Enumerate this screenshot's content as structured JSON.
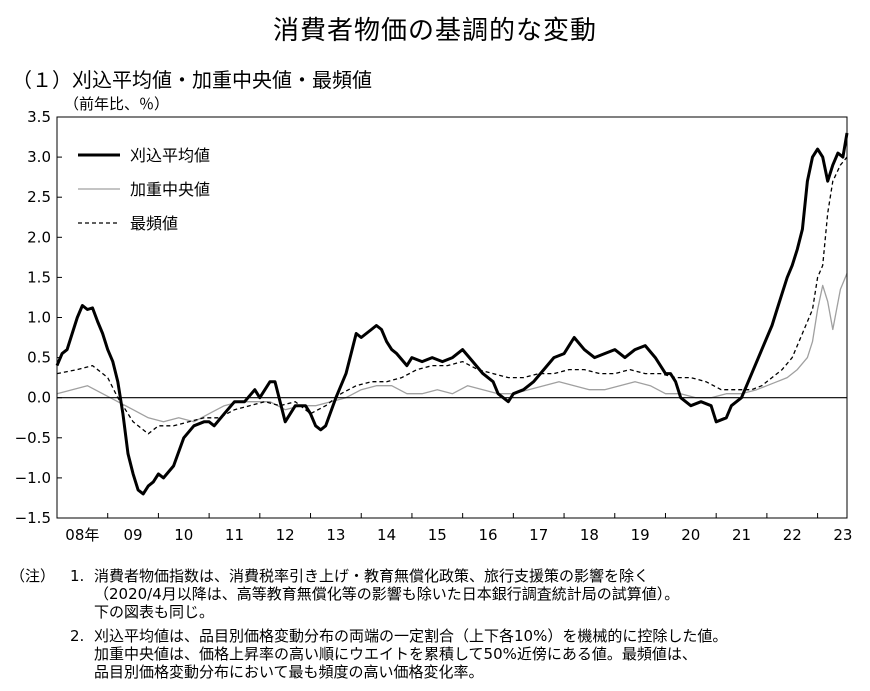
{
  "title": "消費者物価の基調的な変動",
  "section": "（１）刈込平均値・加重中央値・最頻値",
  "unit": "（前年比、％）",
  "notes": {
    "head": "（注）",
    "items": [
      {
        "num": "1.",
        "lines": [
          "消費者物価指数は、消費税率引き上げ・教育無償化政策、旅行支援策の影響を除く",
          "（2020/4月以降は、高等教育無償化等の影響も除いた日本銀行調査統計局の試算値）。",
          "下の図表も同じ。"
        ]
      },
      {
        "num": "2.",
        "lines": [
          "刈込平均値は、品目別価格変動分布の両端の一定割合（上下各10%）を機械的に控除した値。",
          "加重中央値は、価格上昇率の高い順にウエイトを累積して50%近傍にある値。最頻値は、",
          "品目別価格変動分布において最も頻度の高い価格変化率。"
        ]
      }
    ]
  },
  "chart_data": {
    "type": "line",
    "title": "",
    "xlabel": "",
    "ylabel": "（前年比、％）",
    "ylim": [
      -1.5,
      3.5
    ],
    "yticks": [
      "3.5",
      "3.0",
      "2.5",
      "2.0",
      "1.5",
      "1.0",
      "0.5",
      "0.0",
      "-0.5",
      "-1.0",
      "-1.5"
    ],
    "xlim": [
      2008.0,
      2023.58
    ],
    "xticks": [
      {
        "label": "08年",
        "x": 2008.0
      },
      {
        "label": "09",
        "x": 2009.0
      },
      {
        "label": "10",
        "x": 2010.0
      },
      {
        "label": "11",
        "x": 2011.0
      },
      {
        "label": "12",
        "x": 2012.0
      },
      {
        "label": "13",
        "x": 2013.0
      },
      {
        "label": "14",
        "x": 2014.0
      },
      {
        "label": "15",
        "x": 2015.0
      },
      {
        "label": "16",
        "x": 2016.0
      },
      {
        "label": "17",
        "x": 2017.0
      },
      {
        "label": "18",
        "x": 2018.0
      },
      {
        "label": "19",
        "x": 2019.0
      },
      {
        "label": "20",
        "x": 2020.0
      },
      {
        "label": "21",
        "x": 2021.0
      },
      {
        "label": "22",
        "x": 2022.0
      },
      {
        "label": "23",
        "x": 2023.0
      }
    ],
    "legend": "top-left",
    "series": [
      {
        "name": "刈込平均値",
        "color": "#000000",
        "style": "solid-thick",
        "x": [
          2008.0,
          2008.1,
          2008.2,
          2008.3,
          2008.4,
          2008.5,
          2008.6,
          2008.7,
          2008.8,
          2008.9,
          2009.0,
          2009.1,
          2009.2,
          2009.3,
          2009.4,
          2009.5,
          2009.6,
          2009.7,
          2009.8,
          2009.9,
          2010.0,
          2010.1,
          2010.3,
          2010.5,
          2010.7,
          2010.9,
          2011.0,
          2011.1,
          2011.3,
          2011.5,
          2011.7,
          2011.9,
          2012.0,
          2012.1,
          2012.2,
          2012.3,
          2012.5,
          2012.7,
          2012.9,
          2013.0,
          2013.1,
          2013.2,
          2013.3,
          2013.5,
          2013.7,
          2013.8,
          2013.9,
          2014.0,
          2014.1,
          2014.2,
          2014.3,
          2014.4,
          2014.5,
          2014.6,
          2014.7,
          2014.9,
          2015.0,
          2015.2,
          2015.4,
          2015.6,
          2015.8,
          2016.0,
          2016.2,
          2016.4,
          2016.6,
          2016.7,
          2016.8,
          2016.9,
          2017.0,
          2017.2,
          2017.4,
          2017.6,
          2017.8,
          2018.0,
          2018.1,
          2018.2,
          2018.4,
          2018.6,
          2018.8,
          2019.0,
          2019.2,
          2019.4,
          2019.6,
          2019.8,
          2020.0,
          2020.1,
          2020.2,
          2020.3,
          2020.5,
          2020.7,
          2020.9,
          2021.0,
          2021.2,
          2021.3,
          2021.5,
          2021.7,
          2021.9,
          2022.0,
          2022.1,
          2022.2,
          2022.3,
          2022.4,
          2022.5,
          2022.6,
          2022.7,
          2022.8,
          2022.9,
          2023.0,
          2023.1,
          2023.2,
          2023.3,
          2023.4,
          2023.5,
          2023.58
        ],
        "values": [
          0.4,
          0.55,
          0.6,
          0.8,
          1.0,
          1.15,
          1.1,
          1.12,
          0.95,
          0.8,
          0.6,
          0.45,
          0.2,
          -0.2,
          -0.7,
          -0.95,
          -1.15,
          -1.2,
          -1.1,
          -1.05,
          -0.95,
          -1.0,
          -0.85,
          -0.5,
          -0.35,
          -0.3,
          -0.3,
          -0.35,
          -0.2,
          -0.05,
          -0.05,
          0.1,
          0.0,
          0.1,
          0.2,
          0.2,
          -0.3,
          -0.1,
          -0.1,
          -0.2,
          -0.35,
          -0.4,
          -0.35,
          0.0,
          0.3,
          0.55,
          0.8,
          0.75,
          0.8,
          0.85,
          0.9,
          0.85,
          0.7,
          0.6,
          0.55,
          0.4,
          0.5,
          0.45,
          0.5,
          0.45,
          0.5,
          0.6,
          0.45,
          0.3,
          0.2,
          0.05,
          0.0,
          -0.05,
          0.05,
          0.1,
          0.2,
          0.35,
          0.5,
          0.55,
          0.65,
          0.75,
          0.6,
          0.5,
          0.55,
          0.6,
          0.5,
          0.6,
          0.65,
          0.5,
          0.3,
          0.3,
          0.2,
          0.0,
          -0.1,
          -0.05,
          -0.1,
          -0.3,
          -0.25,
          -0.1,
          0.0,
          0.3,
          0.6,
          0.75,
          0.9,
          1.1,
          1.3,
          1.5,
          1.65,
          1.85,
          2.1,
          2.7,
          3.0,
          3.1,
          3.0,
          2.7,
          2.9,
          3.05,
          3.0,
          3.3
        ]
      },
      {
        "name": "加重中央値",
        "color": "#a0a0a0",
        "style": "solid-thin",
        "x": [
          2008.0,
          2008.3,
          2008.6,
          2008.9,
          2009.2,
          2009.5,
          2009.8,
          2010.1,
          2010.4,
          2010.7,
          2011.0,
          2011.3,
          2011.6,
          2011.9,
          2012.2,
          2012.5,
          2012.8,
          2013.1,
          2013.4,
          2013.7,
          2014.0,
          2014.3,
          2014.6,
          2014.9,
          2015.2,
          2015.5,
          2015.8,
          2016.1,
          2016.4,
          2016.7,
          2017.0,
          2017.3,
          2017.6,
          2017.9,
          2018.2,
          2018.5,
          2018.8,
          2019.1,
          2019.4,
          2019.7,
          2020.0,
          2020.3,
          2020.6,
          2020.9,
          2021.2,
          2021.5,
          2021.8,
          2022.0,
          2022.2,
          2022.4,
          2022.6,
          2022.8,
          2022.9,
          2023.0,
          2023.1,
          2023.2,
          2023.3,
          2023.45,
          2023.58
        ],
        "values": [
          0.05,
          0.1,
          0.15,
          0.05,
          -0.05,
          -0.15,
          -0.25,
          -0.3,
          -0.25,
          -0.3,
          -0.2,
          -0.1,
          -0.05,
          -0.05,
          -0.05,
          -0.15,
          -0.1,
          -0.1,
          -0.05,
          0.0,
          0.1,
          0.15,
          0.15,
          0.05,
          0.05,
          0.1,
          0.05,
          0.15,
          0.1,
          0.05,
          0.05,
          0.1,
          0.15,
          0.2,
          0.15,
          0.1,
          0.1,
          0.15,
          0.2,
          0.15,
          0.05,
          0.05,
          0.0,
          0.0,
          0.05,
          0.05,
          0.1,
          0.15,
          0.2,
          0.25,
          0.35,
          0.5,
          0.7,
          1.1,
          1.4,
          1.2,
          0.85,
          1.35,
          1.55
        ]
      },
      {
        "name": "最頻値",
        "color": "#000000",
        "style": "dashed",
        "x": [
          2008.0,
          2008.4,
          2008.7,
          2009.0,
          2009.2,
          2009.5,
          2009.8,
          2010.0,
          2010.3,
          2010.6,
          2010.9,
          2011.2,
          2011.5,
          2011.8,
          2012.1,
          2012.4,
          2012.7,
          2013.0,
          2013.3,
          2013.6,
          2013.9,
          2014.2,
          2014.5,
          2014.8,
          2015.1,
          2015.4,
          2015.7,
          2016.0,
          2016.3,
          2016.6,
          2016.9,
          2017.2,
          2017.5,
          2017.8,
          2018.1,
          2018.4,
          2018.7,
          2019.0,
          2019.3,
          2019.6,
          2019.9,
          2020.2,
          2020.5,
          2020.8,
          2021.1,
          2021.4,
          2021.7,
          2021.9,
          2022.1,
          2022.3,
          2022.5,
          2022.7,
          2022.9,
          2023.0,
          2023.1,
          2023.2,
          2023.3,
          2023.45,
          2023.58
        ],
        "values": [
          0.3,
          0.35,
          0.4,
          0.25,
          0.0,
          -0.3,
          -0.45,
          -0.35,
          -0.35,
          -0.3,
          -0.25,
          -0.25,
          -0.15,
          -0.1,
          -0.05,
          -0.1,
          -0.05,
          -0.2,
          -0.1,
          0.05,
          0.15,
          0.2,
          0.2,
          0.25,
          0.35,
          0.4,
          0.4,
          0.45,
          0.35,
          0.3,
          0.25,
          0.25,
          0.3,
          0.3,
          0.35,
          0.35,
          0.3,
          0.3,
          0.35,
          0.3,
          0.3,
          0.25,
          0.25,
          0.2,
          0.1,
          0.1,
          0.1,
          0.15,
          0.25,
          0.35,
          0.5,
          0.8,
          1.1,
          1.5,
          1.65,
          2.3,
          2.7,
          2.9,
          3.0
        ]
      }
    ]
  }
}
